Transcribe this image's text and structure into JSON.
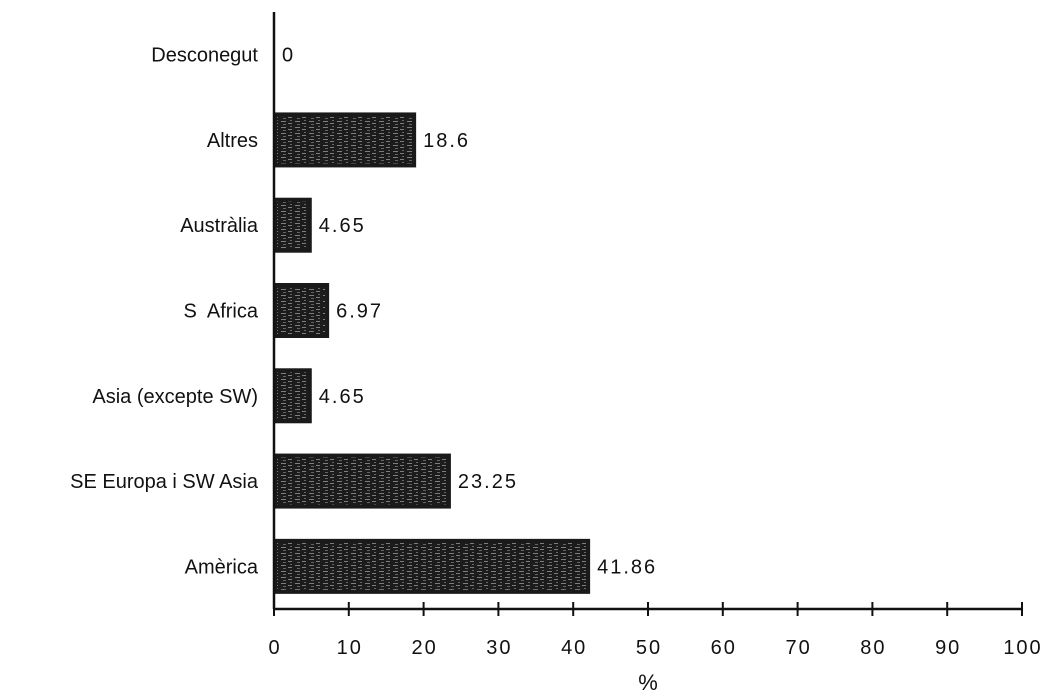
{
  "chart_data": {
    "type": "bar",
    "orientation": "horizontal",
    "categories": [
      "Amèrica",
      "SE Europa i SW Asia",
      "Asia (excepte SW)",
      "S  Africa",
      "Austràlia",
      "Altres",
      "Desconegut"
    ],
    "values": [
      41.86,
      23.25,
      4.65,
      6.97,
      4.65,
      18.6,
      0
    ],
    "value_labels": [
      "41.86",
      "23.25",
      "4.65",
      "6.97",
      "4.65",
      "18.6",
      "0"
    ],
    "xlabel": "%",
    "ylabel": "",
    "title": "",
    "xlim": [
      0,
      100
    ],
    "x_ticks": [
      "0",
      "10",
      "20",
      "30",
      "40",
      "50",
      "60",
      "70",
      "80",
      "90",
      "100"
    ],
    "grid": false,
    "legend": "none",
    "colors": {
      "bar_fill": "#1a1a1a",
      "bar_texture": "#d8d8d8",
      "axis": "#111111"
    }
  }
}
